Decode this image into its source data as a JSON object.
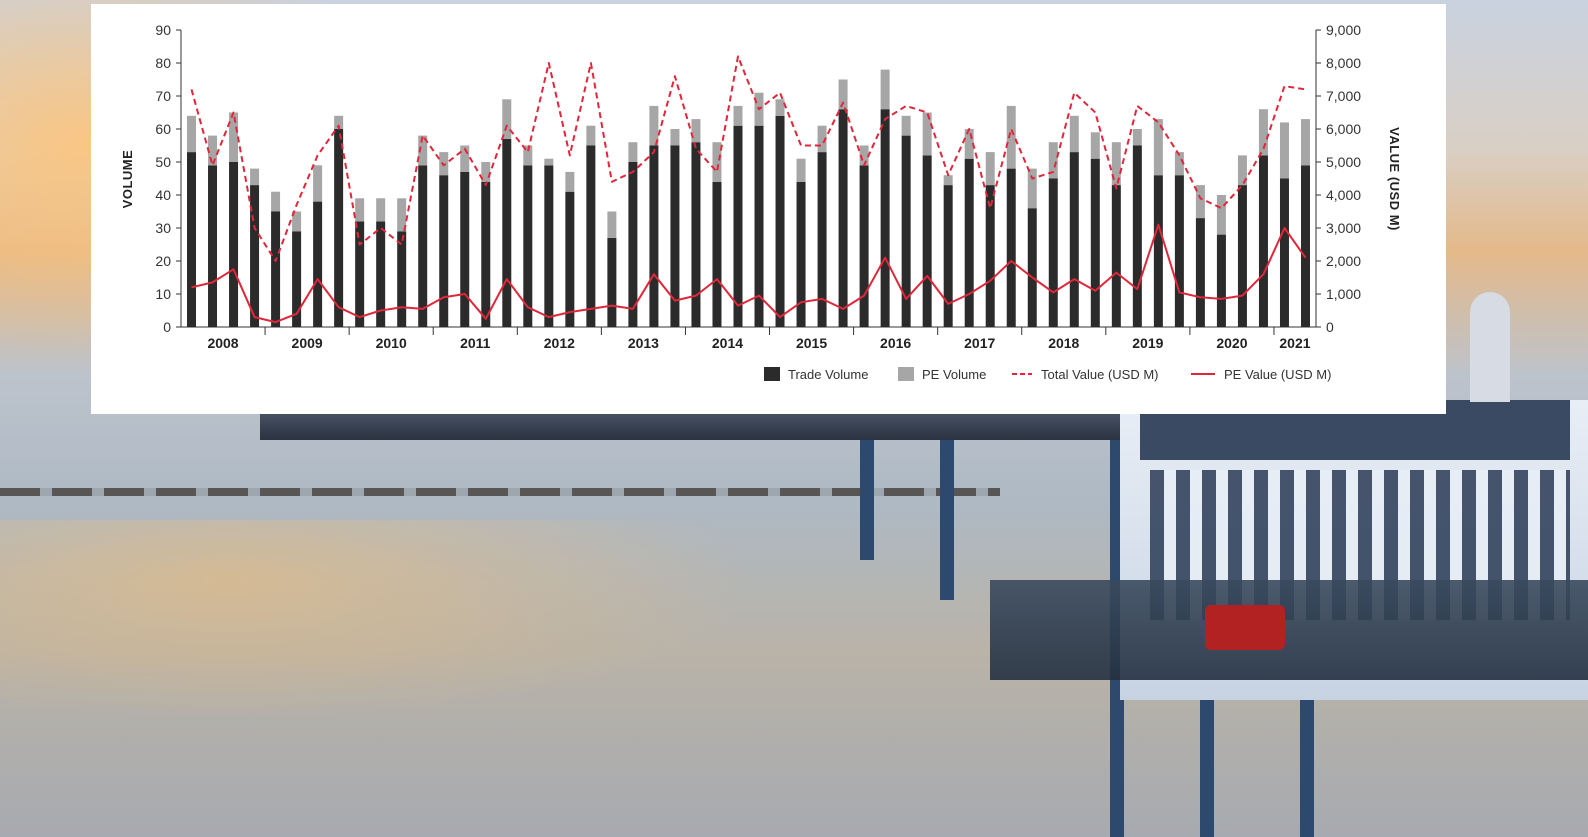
{
  "colors": {
    "trade_volume": "#2b2b2b",
    "pe_volume": "#a6a6a6",
    "total_value": "#e0273a",
    "pe_value": "#e0273a"
  },
  "chart_data": {
    "type": "bar",
    "stacked": true,
    "secondary_axis": "line",
    "title": "",
    "ylabel_left": "VOLUME",
    "ylabel_right": "VALUE (USD M)",
    "ylim_left": [
      0,
      90
    ],
    "ylim_right": [
      0,
      9000
    ],
    "yticks_left": [
      "0",
      "10",
      "20",
      "30",
      "40",
      "50",
      "60",
      "70",
      "80",
      "90"
    ],
    "yticks_right": [
      "0",
      "1,000",
      "2,000",
      "3,000",
      "4,000",
      "5,000",
      "6,000",
      "7,000",
      "8,000",
      "9,000"
    ],
    "years": [
      {
        "label": "2008",
        "quarters": 4
      },
      {
        "label": "2009",
        "quarters": 4
      },
      {
        "label": "2010",
        "quarters": 4
      },
      {
        "label": "2011",
        "quarters": 4
      },
      {
        "label": "2012",
        "quarters": 4
      },
      {
        "label": "2013",
        "quarters": 4
      },
      {
        "label": "2014",
        "quarters": 4
      },
      {
        "label": "2015",
        "quarters": 4
      },
      {
        "label": "2016",
        "quarters": 4
      },
      {
        "label": "2017",
        "quarters": 4
      },
      {
        "label": "2018",
        "quarters": 4
      },
      {
        "label": "2019",
        "quarters": 4
      },
      {
        "label": "2020",
        "quarters": 4
      },
      {
        "label": "2021",
        "quarters": 2
      }
    ],
    "series": [
      {
        "name": "Trade Volume",
        "kind": "bar",
        "color": "#2b2b2b",
        "values": [
          53,
          49,
          50,
          43,
          35,
          29,
          38,
          60,
          32,
          32,
          29,
          49,
          46,
          47,
          44,
          57,
          49,
          49,
          41,
          55,
          27,
          50,
          55,
          55,
          56,
          44,
          61,
          61,
          64,
          44,
          53,
          66,
          49,
          66,
          58,
          52,
          43,
          51,
          43,
          48,
          36,
          45,
          53,
          51,
          43,
          55,
          46,
          46,
          33,
          28,
          43,
          52,
          45,
          49
        ]
      },
      {
        "name": "PE Volume",
        "kind": "bar",
        "color": "#a6a6a6",
        "values": [
          11,
          9,
          15,
          5,
          6,
          6,
          11,
          4,
          7,
          7,
          10,
          9,
          7,
          8,
          6,
          12,
          6,
          2,
          6,
          6,
          8,
          6,
          12,
          5,
          7,
          12,
          6,
          10,
          5,
          7,
          8,
          9,
          6,
          12,
          6,
          13,
          3,
          9,
          10,
          19,
          12,
          11,
          11,
          8,
          13,
          5,
          17,
          7,
          10,
          12,
          9,
          14,
          17,
          14
        ]
      },
      {
        "name": "Total Value (USD M)",
        "kind": "line",
        "dashed": true,
        "color": "#e0273a",
        "values": [
          7200,
          4900,
          6500,
          3000,
          2000,
          3700,
          5200,
          6100,
          2500,
          3000,
          2500,
          5800,
          4900,
          5400,
          4300,
          6100,
          5300,
          8000,
          5200,
          8000,
          4400,
          4700,
          5300,
          7600,
          5400,
          4700,
          8200,
          6600,
          7100,
          5500,
          5500,
          6800,
          4900,
          6300,
          6700,
          6500,
          4600,
          6000,
          3600,
          6000,
          4500,
          4700,
          7100,
          6500,
          4200,
          6700,
          6200,
          5200,
          3900,
          3600,
          4300,
          5400,
          7300,
          7200
        ]
      },
      {
        "name": "PE Value (USD M)",
        "kind": "line",
        "dashed": false,
        "color": "#e0273a",
        "values": [
          1200,
          1350,
          1750,
          300,
          150,
          400,
          1450,
          600,
          300,
          500,
          600,
          550,
          900,
          1000,
          250,
          1450,
          600,
          300,
          450,
          550,
          650,
          550,
          1600,
          800,
          950,
          1450,
          650,
          950,
          300,
          750,
          850,
          550,
          950,
          2100,
          850,
          1550,
          700,
          1000,
          1400,
          2000,
          1500,
          1050,
          1450,
          1100,
          1650,
          1150,
          3100,
          1050,
          900,
          850,
          950,
          1600,
          3000,
          2100
        ]
      }
    ],
    "legend": [
      "Trade Volume",
      "PE Volume",
      "Total Value (USD M)",
      "PE Value (USD M)"
    ],
    "legend_position": "bottom-right"
  }
}
